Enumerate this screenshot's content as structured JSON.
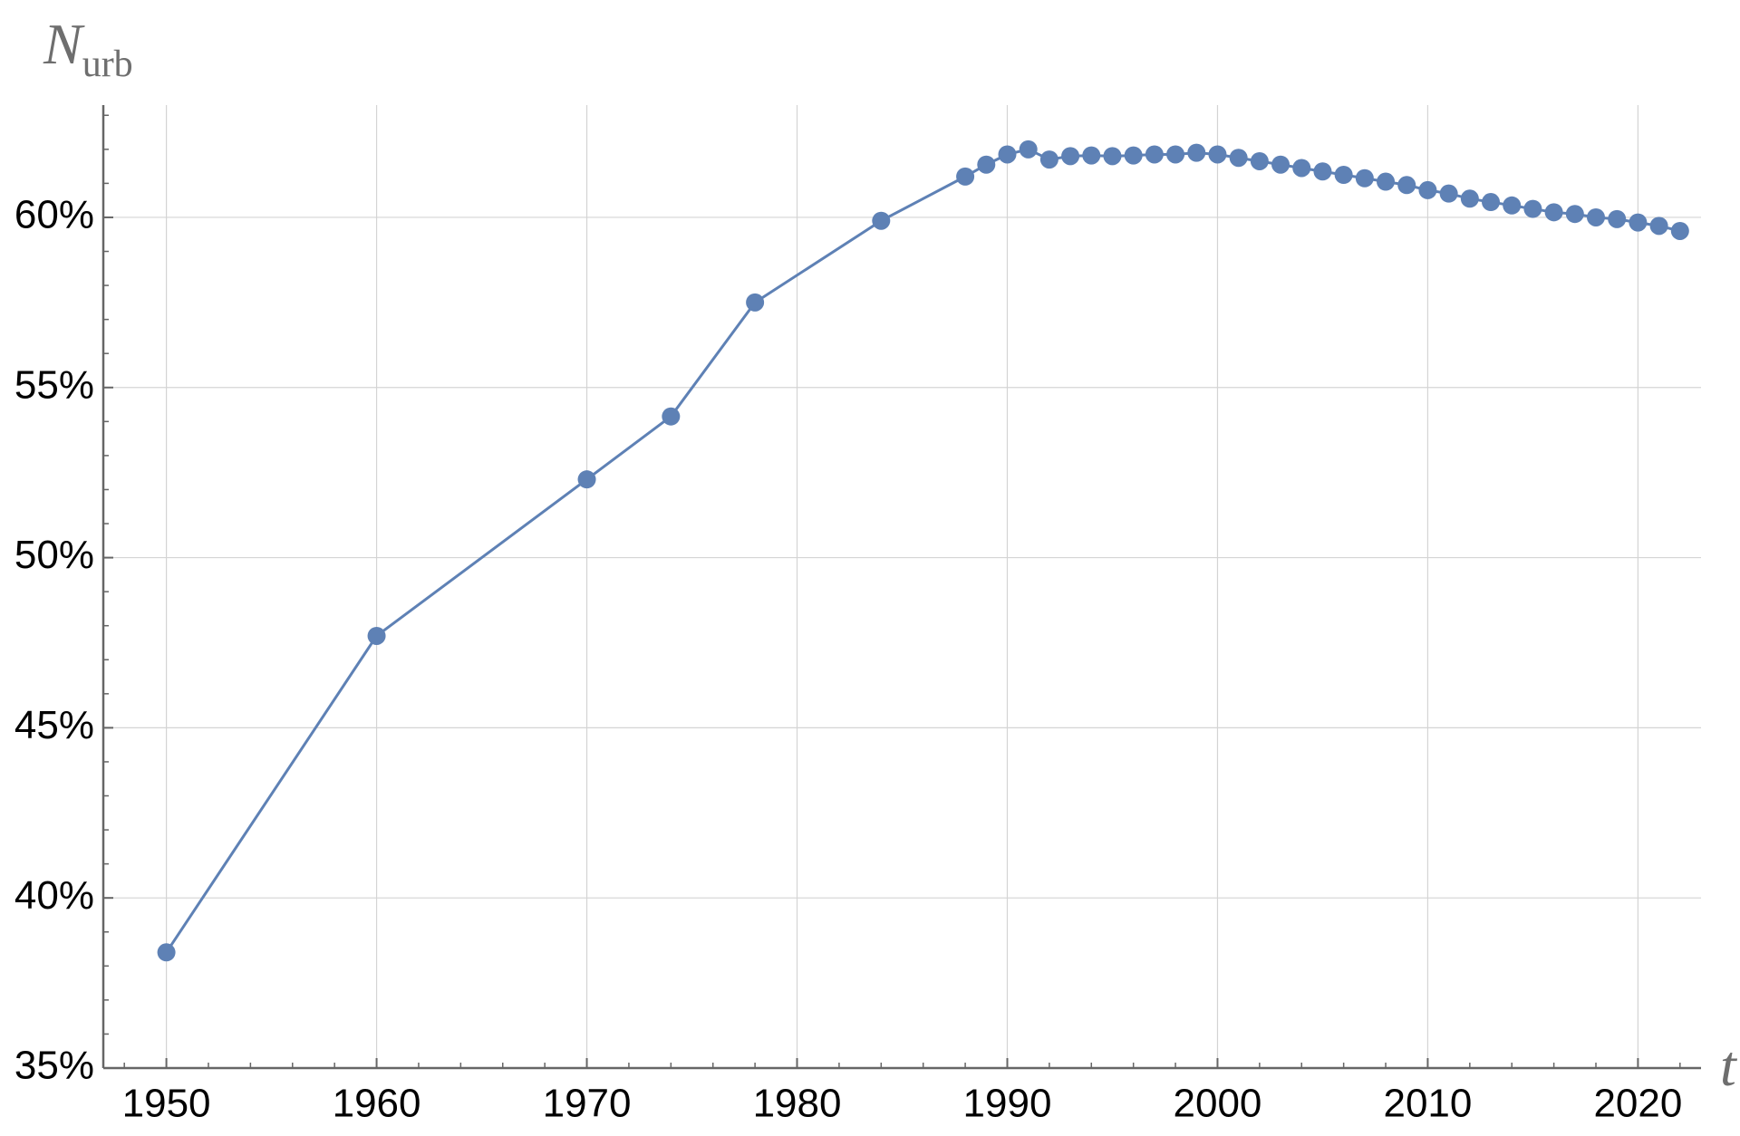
{
  "chart_data": {
    "type": "line",
    "y_label": "N",
    "y_label_sub": "urb",
    "x_label": "t",
    "x": [
      1950,
      1960,
      1970,
      1974,
      1978,
      1984,
      1988,
      1989,
      1990,
      1991,
      1992,
      1993,
      1994,
      1995,
      1996,
      1997,
      1998,
      1999,
      2000,
      2001,
      2002,
      2003,
      2004,
      2005,
      2006,
      2007,
      2008,
      2009,
      2010,
      2011,
      2012,
      2013,
      2014,
      2015,
      2016,
      2017,
      2018,
      2019,
      2020,
      2021,
      2022
    ],
    "series": [
      {
        "color": "#5e81b5",
        "values": [
          38.4,
          47.7,
          52.3,
          54.15,
          57.5,
          59.9,
          61.2,
          61.55,
          61.85,
          62.0,
          61.7,
          61.8,
          61.82,
          61.8,
          61.82,
          61.85,
          61.85,
          61.9,
          61.85,
          61.75,
          61.65,
          61.55,
          61.45,
          61.35,
          61.25,
          61.15,
          61.05,
          60.95,
          60.8,
          60.7,
          60.55,
          60.45,
          60.35,
          60.25,
          60.15,
          60.1,
          60.0,
          59.95,
          59.85,
          59.75,
          59.6
        ]
      }
    ],
    "xlim": [
      1947,
      2023
    ],
    "ylim": [
      35,
      63.3
    ],
    "xticks": [
      1950,
      1960,
      1970,
      1980,
      1990,
      2000,
      2010,
      2020
    ],
    "yticks": [
      {
        "value": 35,
        "label": "35%"
      },
      {
        "value": 40,
        "label": "40%"
      },
      {
        "value": 45,
        "label": "45%"
      },
      {
        "value": 50,
        "label": "50%"
      },
      {
        "value": 55,
        "label": "55%"
      },
      {
        "value": 60,
        "label": "60%"
      }
    ],
    "xticks_minor": [
      1948,
      1952,
      1954,
      1956,
      1958,
      1962,
      1964,
      1966,
      1968,
      1972,
      1974,
      1976,
      1978,
      1982,
      1984,
      1986,
      1988,
      1992,
      1994,
      1996,
      1998,
      2002,
      2004,
      2006,
      2008,
      2012,
      2014,
      2016,
      2018,
      2022
    ],
    "yticks_minor": [
      36,
      37,
      38,
      39,
      41,
      42,
      43,
      44,
      46,
      47,
      48,
      49,
      51,
      52,
      53,
      54,
      56,
      57,
      58,
      59,
      61,
      62,
      63
    ],
    "grid": true,
    "axis_color": "#666666",
    "grid_color": "#d4d4d4"
  }
}
